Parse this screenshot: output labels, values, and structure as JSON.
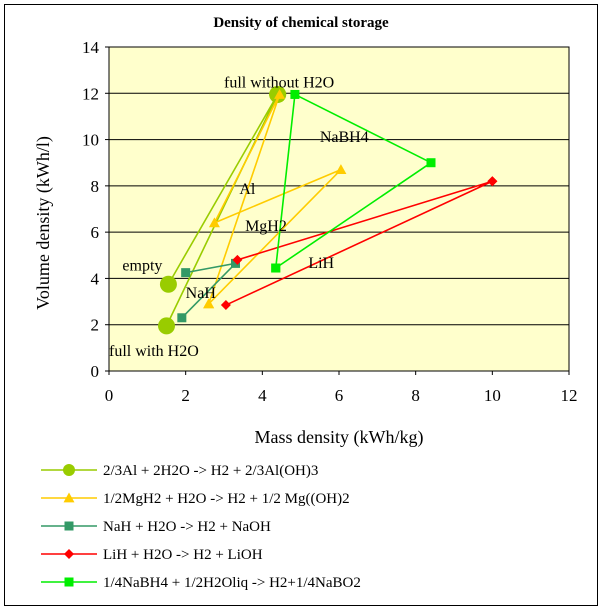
{
  "chart_data": {
    "type": "scatter",
    "title": "Density of chemical storage",
    "xlabel": "Mass density (kWh/kg)",
    "ylabel": "Volume density (kWh/l)",
    "xlim": [
      0,
      12
    ],
    "ylim": [
      0,
      14
    ],
    "x_ticks": [
      0,
      2,
      4,
      6,
      8,
      10,
      12
    ],
    "y_ticks": [
      0,
      2,
      4,
      6,
      8,
      10,
      12,
      14
    ],
    "grid": "horizontal",
    "plot_background": "#ffffcc",
    "legend_position": "bottom",
    "series": [
      {
        "name": "2/3Al + 2H2O -> H2 + 2/3Al(OH)3",
        "color": "#99cc00",
        "marker": "circle",
        "points": [
          [
            1.5,
            1.95
          ],
          [
            4.4,
            11.95
          ],
          [
            1.55,
            3.75
          ],
          [
            4.4,
            11.95
          ]
        ]
      },
      {
        "name": "1/2MgH2 + H2O  -> H2 + 1/2 Mg((OH)2",
        "color": "#ffcc00",
        "marker": "triangle",
        "points": [
          [
            2.6,
            2.9
          ],
          [
            4.45,
            11.95
          ],
          [
            2.75,
            6.4
          ],
          [
            6.05,
            8.7
          ],
          [
            2.6,
            2.9
          ]
        ]
      },
      {
        "name": "NaH + H2O  -> H2 + NaOH",
        "color": "#339966",
        "marker": "square",
        "points": [
          [
            1.9,
            2.3
          ],
          [
            3.3,
            4.65
          ],
          [
            2.0,
            4.25
          ]
        ]
      },
      {
        "name": "LiH + H2O  -> H2 + LiOH",
        "color": "#ff0000",
        "marker": "diamond",
        "points": [
          [
            3.05,
            2.85
          ],
          [
            10.0,
            8.2
          ],
          [
            3.35,
            4.8
          ],
          [
            10.0,
            8.2
          ]
        ]
      },
      {
        "name": "1/4NaBH4 + 1/2H2Oliq -> H2+1/4NaBO2",
        "color": "#00ee00",
        "marker": "square",
        "points": [
          [
            4.35,
            4.45
          ],
          [
            4.85,
            11.95
          ],
          [
            8.4,
            9.0
          ],
          [
            4.35,
            4.45
          ]
        ]
      }
    ],
    "annotations": [
      {
        "text": "full without H2O",
        "x": 3.0,
        "y": 12.25
      },
      {
        "text": "NaBH4",
        "x": 5.5,
        "y": 9.9
      },
      {
        "text": "Al",
        "x": 3.4,
        "y": 7.65
      },
      {
        "text": "MgH2",
        "x": 3.55,
        "y": 6.05
      },
      {
        "text": "LiH",
        "x": 5.2,
        "y": 4.45
      },
      {
        "text": "empty",
        "x": 0.35,
        "y": 4.35
      },
      {
        "text": "NaH",
        "x": 2.0,
        "y": 3.15
      },
      {
        "text": "full with H2O",
        "x": 0.0,
        "y": 0.65
      }
    ]
  }
}
